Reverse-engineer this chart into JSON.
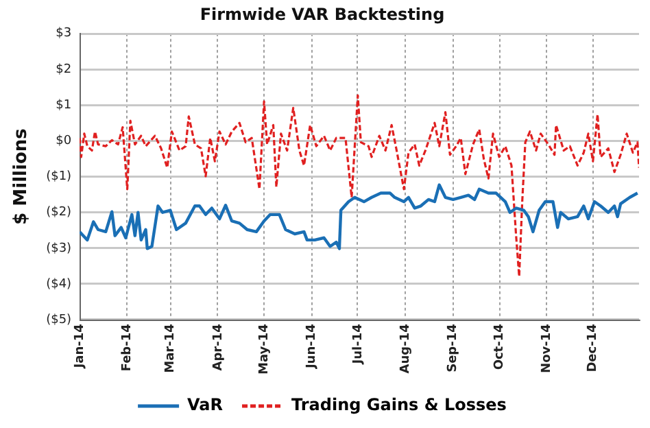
{
  "chart_data": {
    "type": "line",
    "title": "Firmwide VAR Backtesting",
    "ylabel": "$ Millions",
    "xlim": [
      "2014-01-01",
      "2014-12-31"
    ],
    "xticks": [
      {
        "value": "2014-01-01",
        "label": "Jan-14"
      },
      {
        "value": "2014-02-01",
        "label": "Feb-14"
      },
      {
        "value": "2014-03-01",
        "label": "Mar-14"
      },
      {
        "value": "2014-04-01",
        "label": "Apr-14"
      },
      {
        "value": "2014-05-01",
        "label": "May-14"
      },
      {
        "value": "2014-06-01",
        "label": "Jun-14"
      },
      {
        "value": "2014-07-01",
        "label": "Jul-14"
      },
      {
        "value": "2014-08-01",
        "label": "Aug-14"
      },
      {
        "value": "2014-09-01",
        "label": "Sep-14"
      },
      {
        "value": "2014-10-01",
        "label": "Oct-14"
      },
      {
        "value": "2014-11-01",
        "label": "Nov-14"
      },
      {
        "value": "2014-12-01",
        "label": "Dec-14"
      }
    ],
    "ylim": [
      -5,
      3
    ],
    "yticks": [
      {
        "value": -5,
        "label": "($5)"
      },
      {
        "value": -4,
        "label": "($4)"
      },
      {
        "value": -3,
        "label": "($3)"
      },
      {
        "value": -2,
        "label": "($2)"
      },
      {
        "value": -1,
        "label": "($1)"
      },
      {
        "value": 0,
        "label": "$0"
      },
      {
        "value": 1,
        "label": "$1"
      },
      {
        "value": 2,
        "label": "$2"
      },
      {
        "value": 3,
        "label": "$3"
      }
    ],
    "grid": true,
    "legend": "bottom",
    "marker": "none",
    "series": [
      {
        "name": "VaR",
        "color": "#1a6fb5",
        "line_style": "solid",
        "x": [
          "2014-01-01",
          "2014-01-06",
          "2014-01-10",
          "2014-01-13",
          "2014-01-18",
          "2014-01-22",
          "2014-01-24",
          "2014-01-28",
          "2014-01-31",
          "2014-02-04",
          "2014-02-06",
          "2014-02-08",
          "2014-02-10",
          "2014-02-13",
          "2014-02-14",
          "2014-02-17",
          "2014-02-21",
          "2014-02-24",
          "2014-03-01",
          "2014-03-05",
          "2014-03-11",
          "2014-03-17",
          "2014-03-20",
          "2014-03-24",
          "2014-03-28",
          "2014-04-02",
          "2014-04-06",
          "2014-04-10",
          "2014-04-15",
          "2014-04-20",
          "2014-04-26",
          "2014-05-01",
          "2014-05-05",
          "2014-05-11",
          "2014-05-15",
          "2014-05-21",
          "2014-05-27",
          "2014-05-29",
          "2014-06-03",
          "2014-06-09",
          "2014-06-13",
          "2014-06-17",
          "2014-06-19",
          "2014-06-20",
          "2014-06-25",
          "2014-06-29",
          "2014-07-05",
          "2014-07-10",
          "2014-07-16",
          "2014-07-22",
          "2014-07-25",
          "2014-07-31",
          "2014-08-03",
          "2014-08-07",
          "2014-08-11",
          "2014-08-16",
          "2014-08-20",
          "2014-08-23",
          "2014-08-27",
          "2014-09-01",
          "2014-09-06",
          "2014-09-11",
          "2014-09-15",
          "2014-09-18",
          "2014-09-24",
          "2014-09-29",
          "2014-10-05",
          "2014-10-08",
          "2014-10-12",
          "2014-10-17",
          "2014-10-20",
          "2014-10-23",
          "2014-10-27",
          "2014-10-31",
          "2014-11-05",
          "2014-11-08",
          "2014-11-10",
          "2014-11-15",
          "2014-11-21",
          "2014-11-25",
          "2014-11-28",
          "2014-12-02",
          "2014-12-06",
          "2014-12-11",
          "2014-12-15",
          "2014-12-17",
          "2014-12-19",
          "2014-12-25",
          "2014-12-30"
        ],
        "values": [
          -2.54,
          -2.77,
          -2.26,
          -2.48,
          -2.54,
          -1.98,
          -2.65,
          -2.42,
          -2.71,
          -2.06,
          -2.65,
          -2.0,
          -2.77,
          -2.48,
          -3.01,
          -2.95,
          -1.82,
          -2.0,
          -1.94,
          -2.48,
          -2.3,
          -1.82,
          -1.82,
          -2.06,
          -1.88,
          -2.18,
          -1.8,
          -2.24,
          -2.3,
          -2.48,
          -2.54,
          -2.24,
          -2.06,
          -2.06,
          -2.48,
          -2.6,
          -2.54,
          -2.77,
          -2.77,
          -2.71,
          -2.95,
          -2.83,
          -3.01,
          -1.94,
          -1.7,
          -1.58,
          -1.7,
          -1.58,
          -1.46,
          -1.46,
          -1.58,
          -1.7,
          -1.58,
          -1.88,
          -1.82,
          -1.64,
          -1.7,
          -1.23,
          -1.58,
          -1.64,
          -1.58,
          -1.52,
          -1.64,
          -1.35,
          -1.46,
          -1.46,
          -1.7,
          -2.0,
          -1.88,
          -1.94,
          -2.12,
          -2.54,
          -1.94,
          -1.7,
          -1.7,
          -2.42,
          -2.0,
          -2.18,
          -2.12,
          -1.82,
          -2.18,
          -1.7,
          -1.82,
          -2.0,
          -1.82,
          -2.12,
          -1.76,
          -1.58,
          -1.46
        ]
      },
      {
        "name": "Trading Gains & Losses",
        "color": "#e02020",
        "line_style": "dashed",
        "x": [
          "2014-01-01",
          "2014-01-02",
          "2014-01-04",
          "2014-01-06",
          "2014-01-09",
          "2014-01-11",
          "2014-01-13",
          "2014-01-18",
          "2014-01-22",
          "2014-01-26",
          "2014-01-29",
          "2014-02-01",
          "2014-02-03",
          "2014-02-06",
          "2014-02-10",
          "2014-02-13",
          "2014-02-19",
          "2014-02-23",
          "2014-02-27",
          "2014-03-02",
          "2014-03-07",
          "2014-03-11",
          "2014-03-13",
          "2014-03-17",
          "2014-03-21",
          "2014-03-24",
          "2014-03-27",
          "2014-03-30",
          "2014-04-02",
          "2014-04-06",
          "2014-04-10",
          "2014-04-15",
          "2014-04-19",
          "2014-04-23",
          "2014-04-28",
          "2014-05-01",
          "2014-05-03",
          "2014-05-07",
          "2014-05-09",
          "2014-05-12",
          "2014-05-16",
          "2014-05-20",
          "2014-05-24",
          "2014-05-27",
          "2014-05-31",
          "2014-06-04",
          "2014-06-09",
          "2014-06-13",
          "2014-06-17",
          "2014-06-23",
          "2014-06-27",
          "2014-07-01",
          "2014-07-03",
          "2014-07-08",
          "2014-07-10",
          "2014-07-15",
          "2014-07-19",
          "2014-07-23",
          "2014-07-26",
          "2014-07-31",
          "2014-08-03",
          "2014-08-07",
          "2014-08-10",
          "2014-08-14",
          "2014-08-20",
          "2014-08-23",
          "2014-08-27",
          "2014-08-30",
          "2014-09-03",
          "2014-09-06",
          "2014-09-09",
          "2014-09-14",
          "2014-09-18",
          "2014-09-21",
          "2014-09-24",
          "2014-09-27",
          "2014-10-01",
          "2014-10-05",
          "2014-10-09",
          "2014-10-12",
          "2014-10-14",
          "2014-10-16",
          "2014-10-18",
          "2014-10-21",
          "2014-10-25",
          "2014-10-28",
          "2014-11-02",
          "2014-11-06",
          "2014-11-07",
          "2014-11-12",
          "2014-11-16",
          "2014-11-21",
          "2014-11-25",
          "2014-11-28",
          "2014-12-01",
          "2014-12-04",
          "2014-12-06",
          "2014-12-11",
          "2014-12-15",
          "2014-12-19",
          "2014-12-23",
          "2014-12-27",
          "2014-12-30",
          "2014-12-31"
        ],
        "values": [
          0.08,
          -0.45,
          0.2,
          -0.15,
          -0.27,
          0.26,
          -0.1,
          -0.15,
          0.02,
          -0.1,
          0.38,
          -1.35,
          0.56,
          -0.1,
          0.14,
          -0.15,
          0.14,
          -0.21,
          -0.75,
          0.26,
          -0.27,
          -0.15,
          0.68,
          -0.1,
          -0.21,
          -0.99,
          0.08,
          -0.57,
          0.26,
          -0.1,
          0.26,
          0.5,
          -0.04,
          0.08,
          -1.35,
          1.1,
          -0.1,
          0.44,
          -1.29,
          0.2,
          -0.27,
          0.92,
          -0.27,
          -0.69,
          0.44,
          -0.15,
          0.14,
          -0.27,
          0.08,
          0.08,
          -1.58,
          1.27,
          -0.04,
          -0.15,
          -0.45,
          0.14,
          -0.27,
          0.44,
          -0.21,
          -1.35,
          -0.33,
          -0.1,
          -0.69,
          -0.27,
          0.5,
          -0.15,
          0.8,
          -0.39,
          -0.15,
          0.08,
          -0.93,
          -0.1,
          0.32,
          -0.51,
          -1.05,
          0.2,
          -0.45,
          -0.15,
          -0.69,
          -2.65,
          -3.79,
          -1.7,
          -0.04,
          0.26,
          -0.27,
          0.2,
          -0.1,
          -0.39,
          0.44,
          -0.27,
          -0.15,
          -0.69,
          -0.33,
          0.2,
          -0.57,
          0.74,
          -0.45,
          -0.21,
          -0.87,
          -0.39,
          0.2,
          -0.33,
          -0.04,
          -0.75
        ]
      }
    ]
  }
}
